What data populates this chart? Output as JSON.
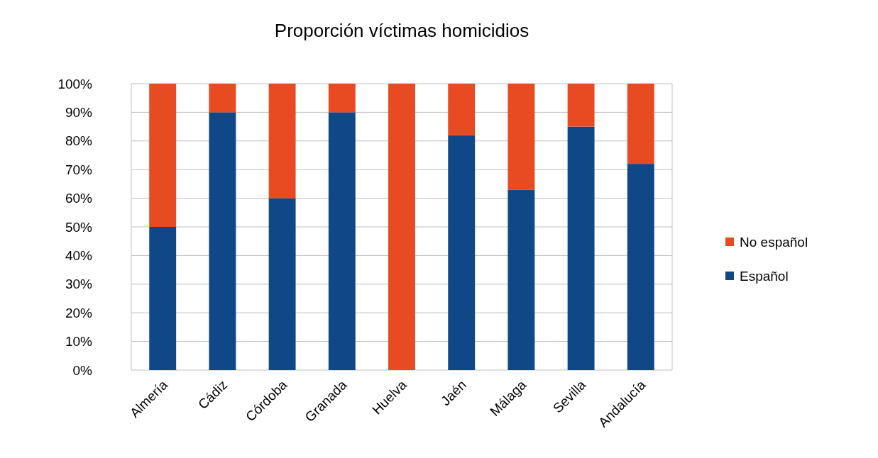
{
  "chart_data": {
    "type": "bar",
    "title": "Proporción víctimas homicidios",
    "categories": [
      "Almería",
      "Cádiz",
      "Córdoba",
      "Granada",
      "Huelva",
      "Jaén",
      "Málaga",
      "Sevilla",
      "Andalucía"
    ],
    "series": [
      {
        "name": "Español",
        "color": "#0f4787",
        "values": [
          50,
          90,
          60,
          90,
          0,
          82,
          63,
          85,
          72
        ]
      },
      {
        "name": "No español",
        "color": "#e84a22",
        "values": [
          50,
          10,
          40,
          10,
          100,
          18,
          37,
          15,
          28
        ]
      }
    ],
    "stacked": true,
    "ylim": [
      0,
      100
    ],
    "yticks": [
      {
        "value": 0,
        "label": "0%"
      },
      {
        "value": 10,
        "label": "10%"
      },
      {
        "value": 20,
        "label": "20%"
      },
      {
        "value": 30,
        "label": "30%"
      },
      {
        "value": 40,
        "label": "40%"
      },
      {
        "value": 50,
        "label": "50%"
      },
      {
        "value": 60,
        "label": "60%"
      },
      {
        "value": 70,
        "label": "70%"
      },
      {
        "value": 80,
        "label": "80%"
      },
      {
        "value": 90,
        "label": "90%"
      },
      {
        "value": 100,
        "label": "100%"
      }
    ],
    "grid": "y",
    "legend": "right"
  }
}
